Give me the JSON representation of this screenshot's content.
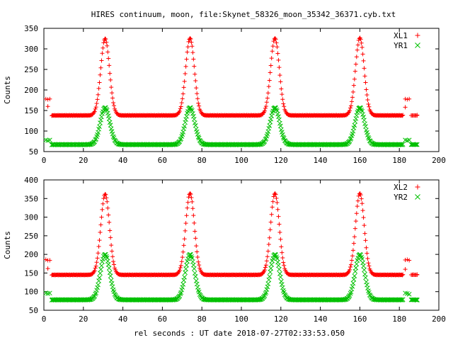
{
  "title": "HIRES continuum, moon, file:Skynet_58326_moon_35342_36371.cyb.txt",
  "xlabel": "rel seconds : UT date 2018-07-27T02:33:53.050",
  "colors": {
    "red": "#ff0000",
    "green": "#00c000",
    "axis": "#000000"
  },
  "chart_data": [
    {
      "type": "scatter",
      "ylabel": "Counts",
      "xlim": [
        0,
        200
      ],
      "ylim": [
        50,
        350
      ],
      "xticks": [
        0,
        20,
        40,
        60,
        80,
        100,
        120,
        140,
        160,
        180,
        200
      ],
      "yticks": [
        50,
        100,
        150,
        200,
        250,
        300,
        350
      ],
      "legend_position": "top-right",
      "series": [
        {
          "name": "XL1",
          "color": "#ff0000",
          "marker": "plus",
          "baseline": 138,
          "peaks": [
            {
              "center": 31,
              "height": 325,
              "width": 2.2
            },
            {
              "center": 74,
              "height": 326,
              "width": 2.2
            },
            {
              "center": 117,
              "height": 326,
              "width": 2.2
            },
            {
              "center": 160,
              "height": 327,
              "width": 2.2
            }
          ],
          "points_edge": [
            [
              1,
              178
            ],
            [
              2,
              177
            ],
            [
              3,
              178
            ],
            [
              2,
              160
            ],
            [
              183,
              178
            ],
            [
              184,
              177
            ],
            [
              185,
              178
            ],
            [
              183,
              158
            ],
            [
              187,
              138
            ],
            [
              189,
              139
            ]
          ]
        },
        {
          "name": "YR1",
          "color": "#00c000",
          "marker": "cross",
          "baseline": 67,
          "peaks": [
            {
              "center": 31,
              "height": 157,
              "width": 2.4
            },
            {
              "center": 74,
              "height": 157,
              "width": 2.4
            },
            {
              "center": 117,
              "height": 157,
              "width": 2.4
            },
            {
              "center": 160,
              "height": 157,
              "width": 2.4
            }
          ],
          "points_edge": [
            [
              1,
              78
            ],
            [
              2,
              77
            ],
            [
              3,
              78
            ],
            [
              183,
              78
            ],
            [
              184,
              77
            ],
            [
              185,
              78
            ],
            [
              187,
              68
            ],
            [
              189,
              67
            ]
          ]
        }
      ]
    },
    {
      "type": "scatter",
      "ylabel": "Counts",
      "xlim": [
        0,
        200
      ],
      "ylim": [
        50,
        400
      ],
      "xticks": [
        0,
        20,
        40,
        60,
        80,
        100,
        120,
        140,
        160,
        180,
        200
      ],
      "yticks": [
        50,
        100,
        150,
        200,
        250,
        300,
        350,
        400
      ],
      "legend_position": "top-right",
      "series": [
        {
          "name": "XL2",
          "color": "#ff0000",
          "marker": "plus",
          "baseline": 145,
          "peaks": [
            {
              "center": 31,
              "height": 362,
              "width": 2.2
            },
            {
              "center": 74,
              "height": 364,
              "width": 2.2
            },
            {
              "center": 117,
              "height": 364,
              "width": 2.2
            },
            {
              "center": 160,
              "height": 364,
              "width": 2.2
            }
          ],
          "points_edge": [
            [
              1,
              186
            ],
            [
              2,
              184
            ],
            [
              3,
              184
            ],
            [
              2,
              162
            ],
            [
              183,
              185
            ],
            [
              184,
              186
            ],
            [
              185,
              184
            ],
            [
              183,
              160
            ],
            [
              187,
              146
            ],
            [
              189,
              146
            ]
          ]
        },
        {
          "name": "YR2",
          "color": "#00c000",
          "marker": "cross",
          "baseline": 78,
          "peaks": [
            {
              "center": 31,
              "height": 200,
              "width": 2.4
            },
            {
              "center": 74,
              "height": 200,
              "width": 2.4
            },
            {
              "center": 117,
              "height": 200,
              "width": 2.4
            },
            {
              "center": 160,
              "height": 200,
              "width": 2.4
            }
          ],
          "points_edge": [
            [
              1,
              96
            ],
            [
              2,
              95
            ],
            [
              3,
              96
            ],
            [
              183,
              96
            ],
            [
              184,
              95
            ],
            [
              185,
              93
            ],
            [
              187,
              78
            ],
            [
              189,
              77
            ]
          ]
        }
      ]
    }
  ]
}
